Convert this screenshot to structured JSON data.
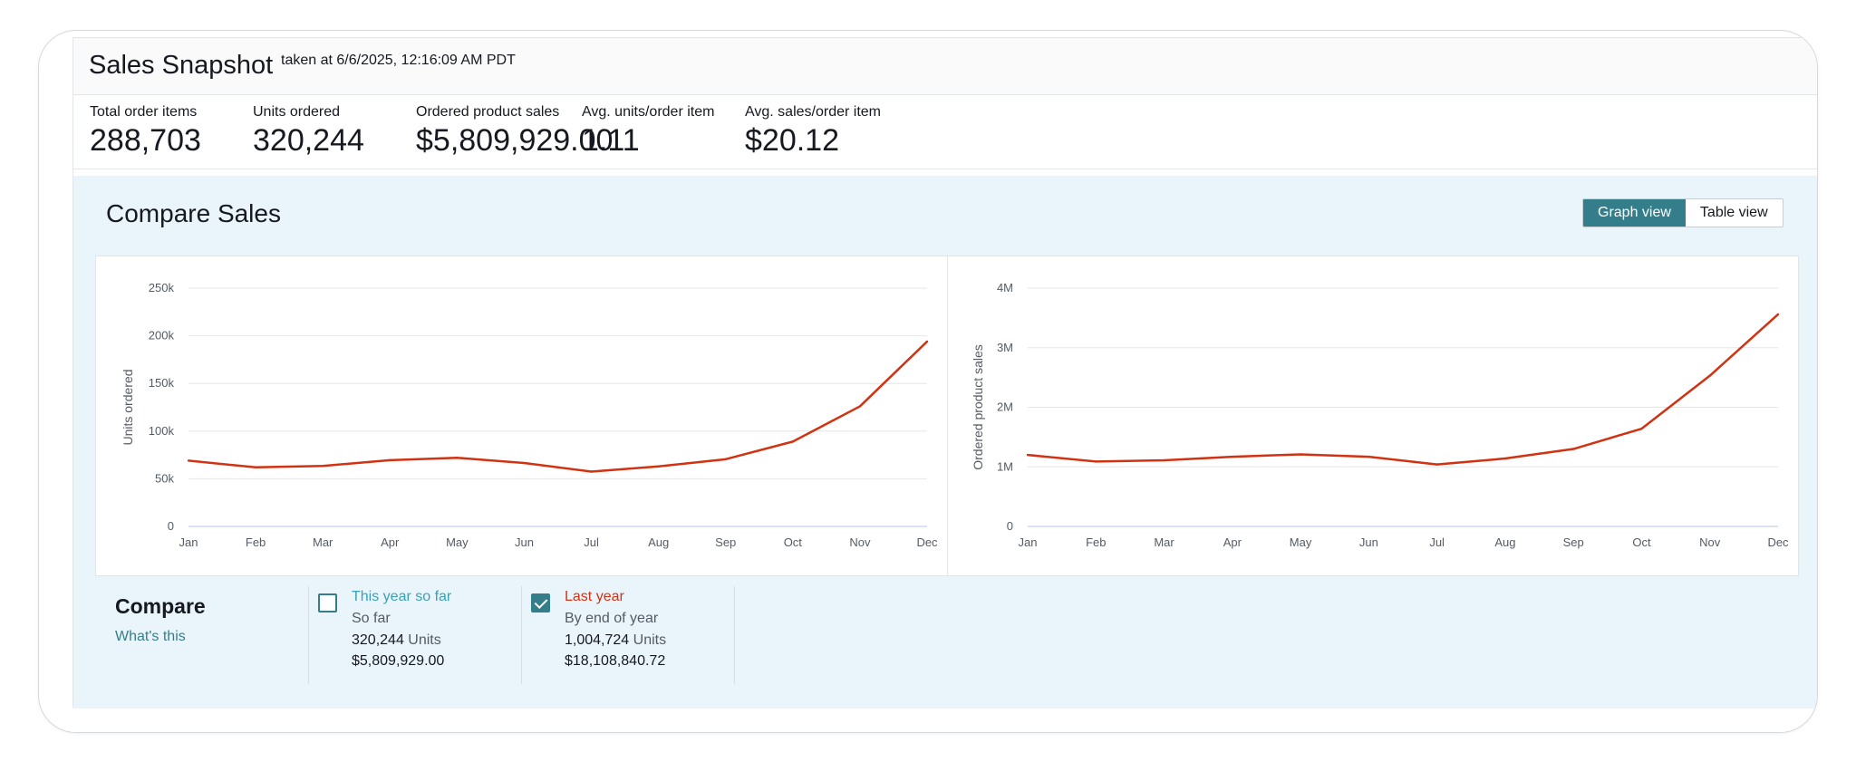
{
  "header": {
    "title": "Sales Snapshot",
    "taken": "taken at 6/6/2025, 12:16:09 AM PDT"
  },
  "metrics": [
    {
      "label": "Total order items",
      "value": "288,703"
    },
    {
      "label": "Units ordered",
      "value": "320,244"
    },
    {
      "label": "Ordered product sales",
      "value": "$5,809,929.00"
    },
    {
      "label": "Avg. units/order item",
      "value": "1.11"
    },
    {
      "label": "Avg. sales/order item",
      "value": "$20.12"
    }
  ],
  "compare_sales": {
    "title": "Compare Sales",
    "graph_view_label": "Graph view",
    "table_view_label": "Table view",
    "active_view": "Graph view"
  },
  "colors": {
    "accent": "#347e8c",
    "last_year_line": "#d13212",
    "panel_bg": "#eaf5fb"
  },
  "chart_data": [
    {
      "type": "line",
      "ylabel": "Units ordered",
      "xlabel": "",
      "categories": [
        "Jan",
        "Feb",
        "Mar",
        "Apr",
        "May",
        "Jun",
        "Jul",
        "Aug",
        "Sep",
        "Oct",
        "Nov",
        "Dec"
      ],
      "yticks": [
        "0",
        "50k",
        "100k",
        "150k",
        "200k",
        "250k"
      ],
      "ylim": [
        0,
        250000
      ],
      "grid": true,
      "series": [
        {
          "name": "Last year",
          "color": "#d13212",
          "values": [
            69000,
            62000,
            63500,
            69500,
            72000,
            66500,
            57500,
            63000,
            70500,
            89000,
            126000,
            194000
          ]
        }
      ]
    },
    {
      "type": "line",
      "ylabel": "Ordered product sales",
      "xlabel": "",
      "categories": [
        "Jan",
        "Feb",
        "Mar",
        "Apr",
        "May",
        "Jun",
        "Jul",
        "Aug",
        "Sep",
        "Oct",
        "Nov",
        "Dec"
      ],
      "yticks": [
        "0",
        "1M",
        "2M",
        "3M",
        "4M"
      ],
      "ylim": [
        0,
        4000000
      ],
      "grid": true,
      "series": [
        {
          "name": "Last year",
          "color": "#d13212",
          "values": [
            1200000,
            1090000,
            1110000,
            1170000,
            1210000,
            1170000,
            1040000,
            1140000,
            1300000,
            1640000,
            2530000,
            3560000
          ]
        }
      ]
    }
  ],
  "compare": {
    "title": "Compare",
    "link": "What's this",
    "options": [
      {
        "name": "This year so far",
        "sub": "So far",
        "units": "320,244",
        "units_label": "Units",
        "sales": "$5,809,929.00",
        "checked": false,
        "color": "#3aa0b4"
      },
      {
        "name": "Last year",
        "sub": "By end of year",
        "units": "1,004,724",
        "units_label": "Units",
        "sales": "$18,108,840.72",
        "checked": true,
        "color": "#d13212"
      }
    ]
  }
}
